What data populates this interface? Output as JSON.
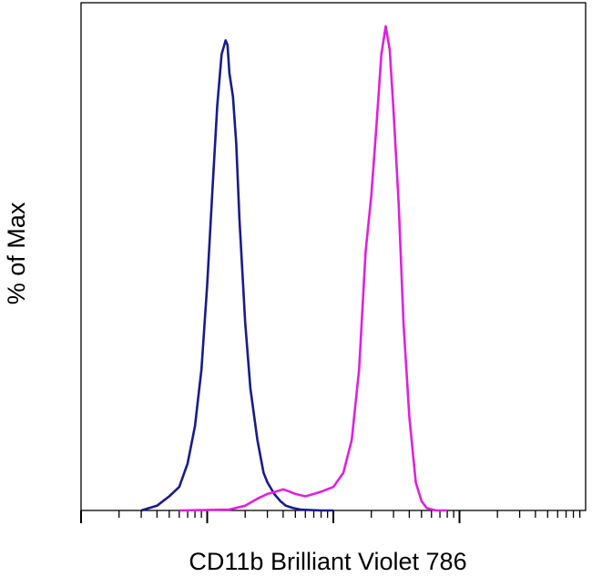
{
  "chart_data": {
    "type": "line",
    "title": "",
    "xlabel": "CD11b Brilliant Violet 786",
    "ylabel": "% of Max",
    "x_scale": "log",
    "xlim": [
      1,
      10000
    ],
    "ylim": [
      0,
      1.08
    ],
    "grid": false,
    "legend": "none",
    "series": [
      {
        "color": "#1a1a8c",
        "x": [
          3.0,
          4.0,
          5.0,
          6.0,
          7.0,
          8.0,
          9.0,
          10.0,
          11.0,
          12.0,
          13.0,
          14.0,
          14.5,
          15.0,
          16.0,
          17.0,
          18.0,
          20.0,
          22.0,
          25.0,
          28.0,
          30.0,
          34.0,
          38.0,
          42.0,
          48.0,
          55.0,
          65.0,
          80.0,
          100.0
        ],
        "y": [
          0.0,
          0.01,
          0.03,
          0.05,
          0.1,
          0.18,
          0.3,
          0.48,
          0.68,
          0.86,
          0.97,
          1.0,
          0.99,
          0.93,
          0.88,
          0.78,
          0.62,
          0.4,
          0.26,
          0.15,
          0.08,
          0.06,
          0.035,
          0.02,
          0.01,
          0.005,
          0.002,
          0.001,
          0.0,
          0.0
        ]
      },
      {
        "color": "#e020e0",
        "x": [
          6.0,
          15.0,
          20.0,
          25.0,
          30.0,
          35.0,
          40.0,
          45.0,
          50.0,
          60.0,
          70.0,
          80.0,
          100.0,
          120.0,
          140.0,
          160.0,
          180.0,
          200.0,
          220.0,
          240.0,
          260.0,
          280.0,
          300.0,
          330.0,
          360.0,
          400.0,
          450.0,
          500.0,
          550.0,
          650.0,
          800.0
        ],
        "y": [
          0.0,
          0.002,
          0.01,
          0.025,
          0.035,
          0.04,
          0.045,
          0.04,
          0.035,
          0.03,
          0.035,
          0.04,
          0.05,
          0.08,
          0.15,
          0.3,
          0.55,
          0.67,
          0.82,
          0.97,
          1.03,
          0.98,
          0.85,
          0.65,
          0.4,
          0.2,
          0.06,
          0.02,
          0.005,
          0.0,
          0.0
        ]
      }
    ]
  }
}
